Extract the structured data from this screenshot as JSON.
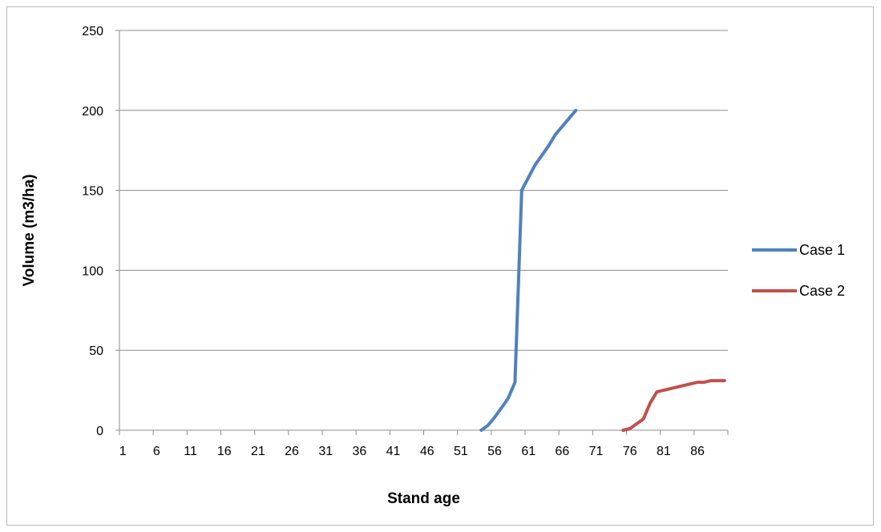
{
  "chart_data": {
    "type": "line",
    "title": "",
    "xlabel": "Stand age",
    "ylabel": "Volume (m3/ha)",
    "x_range": [
      1,
      90
    ],
    "x_tick_labels": [
      "1",
      "6",
      "11",
      "16",
      "21",
      "26",
      "31",
      "36",
      "41",
      "46",
      "51",
      "56",
      "61",
      "66",
      "71",
      "76",
      "81",
      "86"
    ],
    "ylim": [
      0,
      250
    ],
    "y_ticks": [
      0,
      50,
      100,
      150,
      200,
      250
    ],
    "grid": "horizontal",
    "legend_position": "right",
    "series": [
      {
        "name": "Case 1",
        "color": "#4f81bd",
        "points": [
          [
            54,
            0
          ],
          [
            55,
            3
          ],
          [
            56,
            8
          ],
          [
            57,
            14
          ],
          [
            58,
            20
          ],
          [
            59,
            30
          ],
          [
            60,
            150
          ],
          [
            61,
            158
          ],
          [
            62,
            166
          ],
          [
            63,
            172
          ],
          [
            64,
            178
          ],
          [
            65,
            185
          ],
          [
            66,
            190
          ],
          [
            67,
            195
          ],
          [
            68,
            200
          ]
        ]
      },
      {
        "name": "Case 2",
        "color": "#c0504d",
        "points": [
          [
            75,
            0
          ],
          [
            76,
            1
          ],
          [
            77,
            4
          ],
          [
            78,
            7
          ],
          [
            79,
            17
          ],
          [
            80,
            24
          ],
          [
            81,
            25
          ],
          [
            82,
            26
          ],
          [
            83,
            27
          ],
          [
            84,
            28
          ],
          [
            85,
            29
          ],
          [
            86,
            30
          ],
          [
            87,
            30
          ],
          [
            88,
            31
          ],
          [
            89,
            31
          ],
          [
            90,
            31
          ]
        ]
      }
    ]
  }
}
